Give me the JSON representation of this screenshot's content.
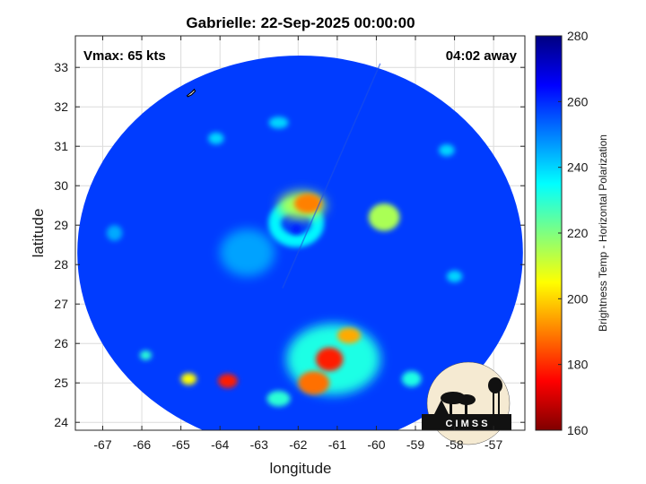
{
  "plot": {
    "title": "Gabrielle: 22-Sep-2025 00:00:00",
    "vmax_label": "Vmax: 65 kts",
    "time_label": "04:02 away",
    "xlabel": "longitude",
    "ylabel": "latitude",
    "colorbar_label": "Brightness Temp - Horizontal Polarization",
    "logo_text": "C I M S S"
  },
  "map_data": {
    "type": "heatmap",
    "xlim": [
      -67.7,
      -56.2
    ],
    "ylim": [
      23.8,
      33.8
    ],
    "x_ticks": [
      -67,
      -66,
      -65,
      -64,
      -63,
      -62,
      -61,
      -60,
      -59,
      -58,
      -57
    ],
    "y_ticks": [
      24,
      25,
      26,
      27,
      28,
      29,
      30,
      31,
      32,
      33
    ],
    "x_tick_labels": [
      "-67",
      "-66",
      "-65",
      "-64",
      "-63",
      "-62",
      "-61",
      "-60",
      "-59",
      "-58",
      "-57"
    ],
    "y_tick_labels": [
      "24",
      "25",
      "26",
      "27",
      "28",
      "29",
      "30",
      "31",
      "32",
      "33"
    ],
    "grid": true,
    "swath": {
      "center_lon": -61.95,
      "center_lat": 28.3,
      "radius_lon": 5.7,
      "radius_lat": 5.0
    },
    "background_tb": 258,
    "colorbar": {
      "min": 160,
      "max": 280,
      "ticks": [
        160,
        180,
        200,
        220,
        240,
        260,
        280
      ],
      "tick_labels": [
        "160",
        "180",
        "200",
        "220",
        "240",
        "260",
        "280"
      ]
    },
    "features": [
      {
        "name": "eyewall-ring",
        "lon": -62.05,
        "lat": 29.05,
        "r_lon": 0.55,
        "r_lat": 0.45,
        "tb": 236,
        "kind": "ring"
      },
      {
        "name": "north-eyewall-hot",
        "lon": -61.75,
        "lat": 29.55,
        "r_lon": 0.35,
        "r_lat": 0.25,
        "tb": 190
      },
      {
        "name": "north-eyewall-warm",
        "lon": -61.9,
        "lat": 29.5,
        "r_lon": 0.6,
        "r_lat": 0.35,
        "tb": 215
      },
      {
        "name": "eye",
        "lon": -62.05,
        "lat": 28.9,
        "r_lon": 0.12,
        "r_lat": 0.12,
        "tb": 262
      },
      {
        "name": "ne-band",
        "lon": -59.8,
        "lat": 29.2,
        "r_lon": 0.4,
        "r_lat": 0.35,
        "tb": 215
      },
      {
        "name": "south-band-1",
        "lon": -61.2,
        "lat": 25.6,
        "r_lon": 0.35,
        "r_lat": 0.3,
        "tb": 178
      },
      {
        "name": "south-band-2",
        "lon": -61.6,
        "lat": 25.0,
        "r_lon": 0.4,
        "r_lat": 0.3,
        "tb": 188
      },
      {
        "name": "south-band-3",
        "lon": -60.7,
        "lat": 26.2,
        "r_lon": 0.3,
        "r_lat": 0.2,
        "tb": 195
      },
      {
        "name": "south-band-cloud",
        "lon": -61.1,
        "lat": 25.6,
        "r_lon": 1.2,
        "r_lat": 0.9,
        "tb": 232
      },
      {
        "name": "sw-cell-1",
        "lon": -63.8,
        "lat": 25.05,
        "r_lon": 0.25,
        "r_lat": 0.18,
        "tb": 178
      },
      {
        "name": "sw-cell-2",
        "lon": -64.8,
        "lat": 25.1,
        "r_lon": 0.2,
        "r_lat": 0.15,
        "tb": 205
      },
      {
        "name": "sw-cell-3",
        "lon": -65.9,
        "lat": 25.7,
        "r_lon": 0.15,
        "r_lat": 0.12,
        "tb": 230
      },
      {
        "name": "sw-cell-4",
        "lon": -62.5,
        "lat": 24.6,
        "r_lon": 0.3,
        "r_lat": 0.2,
        "tb": 230
      },
      {
        "name": "cell-right",
        "lon": -59.1,
        "lat": 25.1,
        "r_lon": 0.25,
        "r_lat": 0.2,
        "tb": 232
      },
      {
        "name": "cell-east",
        "lon": -58.0,
        "lat": 27.7,
        "r_lon": 0.2,
        "r_lat": 0.15,
        "tb": 240
      },
      {
        "name": "cell-north-1",
        "lon": -58.2,
        "lat": 30.9,
        "r_lon": 0.2,
        "r_lat": 0.15,
        "tb": 240
      },
      {
        "name": "cell-north-2",
        "lon": -62.5,
        "lat": 31.6,
        "r_lon": 0.25,
        "r_lat": 0.15,
        "tb": 240
      },
      {
        "name": "cell-nw",
        "lon": -64.1,
        "lat": 31.2,
        "r_lon": 0.2,
        "r_lat": 0.15,
        "tb": 240
      },
      {
        "name": "cell-west",
        "lon": -66.7,
        "lat": 28.8,
        "r_lon": 0.2,
        "r_lat": 0.2,
        "tb": 245
      },
      {
        "name": "band-west",
        "lon": -63.3,
        "lat": 28.3,
        "r_lon": 0.7,
        "r_lat": 0.6,
        "tb": 246
      }
    ],
    "land_outline": {
      "lon": -64.75,
      "lat": 32.35
    }
  },
  "colors": {
    "axis": "#262626",
    "grid": "#dcdcdc"
  }
}
